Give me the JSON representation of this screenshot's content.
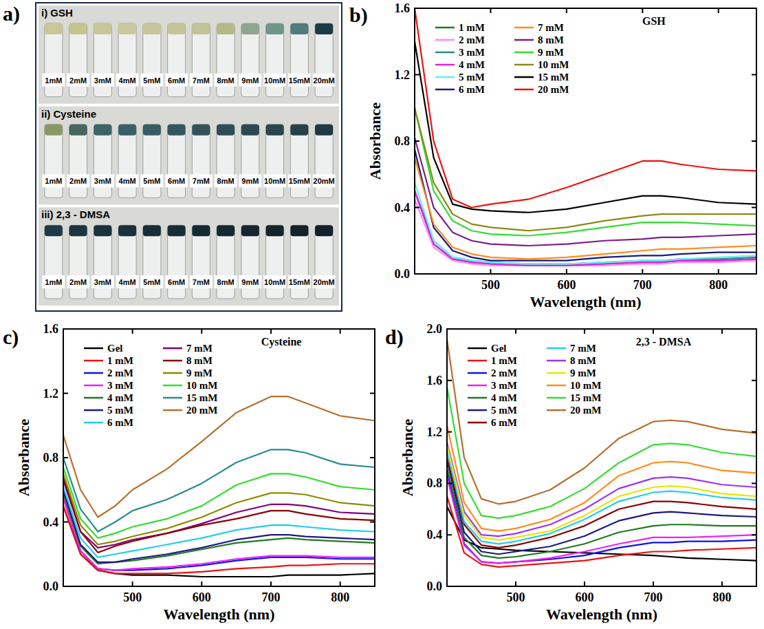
{
  "photo_panel": {
    "panel_label": "a)",
    "rows": [
      {
        "title": "i) GSH",
        "labels": [
          "1mM",
          "2mM",
          "3mM",
          "4mM",
          "5mM",
          "6mM",
          "7mM",
          "8mM",
          "9mM",
          "10mM",
          "15mM",
          "20mM"
        ],
        "colors": [
          "#c9c79a",
          "#c5c48f",
          "#c8c79a",
          "#c9c89c",
          "#c6c59a",
          "#c4c498",
          "#c2c396",
          "#b5b98a",
          "#8fa58e",
          "#6f9588",
          "#4f7c7e",
          "#1d3a48"
        ]
      },
      {
        "title": "ii) Cysteine",
        "labels": [
          "1mM",
          "2mM",
          "3mM",
          "4mM",
          "5mM",
          "6mM",
          "7mM",
          "8mM",
          "9mM",
          "10mM",
          "15mM",
          "20mM"
        ],
        "colors": [
          "#8a9866",
          "#466660",
          "#3e6468",
          "#3b5f66",
          "#3a5c64",
          "#355660",
          "#33525c",
          "#304e58",
          "#2c4852",
          "#2a454f",
          "#27404a",
          "#213843"
        ]
      },
      {
        "title": "iii) 2,3 - DMSA",
        "labels": [
          "1mM",
          "2mM",
          "3mM",
          "4mM",
          "5mM",
          "6mM",
          "7mM",
          "8mM",
          "9mM",
          "10mM",
          "15mM",
          "20mM"
        ],
        "colors": [
          "#1f3a44",
          "#1c343e",
          "#1b323c",
          "#1a303a",
          "#192e38",
          "#182c35",
          "#172a33",
          "#162831",
          "#15262f",
          "#14242d",
          "#13222b",
          "#122029"
        ]
      }
    ]
  },
  "chart_data": [
    {
      "type": "line",
      "panel_label": "b)",
      "title": "GSH",
      "x_label": "Wavelength (nm)",
      "y_label": "Absorbance",
      "x": [
        400,
        425,
        450,
        475,
        500,
        550,
        600,
        650,
        700,
        725,
        750,
        800,
        850
      ],
      "xlim": [
        400,
        850
      ],
      "xticks": [
        500,
        600,
        700,
        800
      ],
      "ylim": [
        0,
        1.6
      ],
      "yticks": [
        {
          "value": 0,
          "label": "0.0"
        },
        0.4,
        0.8,
        1.2,
        1.6
      ],
      "legend": "upper left",
      "series": [
        {
          "name": "1 mM",
          "color": "#1f7a1f",
          "values": [
            0.5,
            0.18,
            0.09,
            0.07,
            0.06,
            0.05,
            0.05,
            0.06,
            0.07,
            0.07,
            0.08,
            0.08,
            0.09
          ]
        },
        {
          "name": "2 mM",
          "color": "#ff88ff",
          "values": [
            0.45,
            0.16,
            0.08,
            0.06,
            0.05,
            0.05,
            0.05,
            0.05,
            0.06,
            0.06,
            0.07,
            0.07,
            0.08
          ]
        },
        {
          "name": "3 mM",
          "color": "#2a8c8c",
          "values": [
            0.5,
            0.2,
            0.1,
            0.08,
            0.07,
            0.06,
            0.06,
            0.07,
            0.08,
            0.08,
            0.09,
            0.09,
            0.1
          ]
        },
        {
          "name": "4 mM",
          "color": "#e020e0",
          "values": [
            0.5,
            0.18,
            0.09,
            0.07,
            0.06,
            0.05,
            0.05,
            0.06,
            0.07,
            0.07,
            0.08,
            0.08,
            0.09
          ]
        },
        {
          "name": "5 mM",
          "color": "#66eeee",
          "values": [
            0.55,
            0.2,
            0.1,
            0.08,
            0.07,
            0.06,
            0.06,
            0.07,
            0.08,
            0.08,
            0.09,
            0.1,
            0.11
          ]
        },
        {
          "name": "6 mM",
          "color": "#1a1a80",
          "values": [
            0.75,
            0.28,
            0.14,
            0.1,
            0.08,
            0.08,
            0.08,
            0.1,
            0.11,
            0.11,
            0.12,
            0.13,
            0.13
          ]
        },
        {
          "name": "7 mM",
          "color": "#ff8c1a",
          "values": [
            0.7,
            0.3,
            0.16,
            0.12,
            0.1,
            0.09,
            0.1,
            0.12,
            0.14,
            0.15,
            0.15,
            0.16,
            0.17
          ]
        },
        {
          "name": "8 mM",
          "color": "#7a1f8a",
          "values": [
            0.82,
            0.4,
            0.25,
            0.2,
            0.18,
            0.17,
            0.18,
            0.2,
            0.21,
            0.22,
            0.22,
            0.23,
            0.24
          ]
        },
        {
          "name": "9 mM",
          "color": "#33dd33",
          "values": [
            1.0,
            0.5,
            0.32,
            0.26,
            0.24,
            0.23,
            0.25,
            0.28,
            0.31,
            0.31,
            0.31,
            0.3,
            0.29
          ]
        },
        {
          "name": "10 mM",
          "color": "#8a8a1a",
          "values": [
            1.0,
            0.55,
            0.36,
            0.3,
            0.28,
            0.26,
            0.28,
            0.32,
            0.35,
            0.36,
            0.36,
            0.36,
            0.36
          ]
        },
        {
          "name": "15 mM",
          "color": "#000000",
          "values": [
            1.4,
            0.7,
            0.42,
            0.39,
            0.38,
            0.37,
            0.39,
            0.43,
            0.47,
            0.47,
            0.46,
            0.43,
            0.42
          ]
        },
        {
          "name": "20 mM",
          "color": "#ee1111",
          "values": [
            1.6,
            0.8,
            0.45,
            0.4,
            0.42,
            0.45,
            0.52,
            0.6,
            0.68,
            0.68,
            0.66,
            0.63,
            0.62
          ]
        }
      ]
    },
    {
      "type": "line",
      "panel_label": "c)",
      "title": "Cysteine",
      "x_label": "Wavelength (nm)",
      "y_label": "Absorbance",
      "x": [
        400,
        425,
        450,
        475,
        500,
        550,
        600,
        650,
        700,
        725,
        750,
        800,
        850
      ],
      "xlim": [
        400,
        850
      ],
      "xticks": [
        500,
        600,
        700,
        800
      ],
      "ylim": [
        0,
        1.6
      ],
      "yticks": [
        {
          "value": 0,
          "label": "0.0"
        },
        0.4,
        0.8,
        1.2,
        1.6
      ],
      "legend": "upper left",
      "series": [
        {
          "name": "Gel",
          "color": "#000000",
          "values": [
            0.5,
            0.2,
            0.1,
            0.08,
            0.07,
            0.07,
            0.06,
            0.06,
            0.06,
            0.07,
            0.07,
            0.07,
            0.08
          ]
        },
        {
          "name": "1 mM",
          "color": "#ee1111",
          "values": [
            0.5,
            0.2,
            0.1,
            0.08,
            0.08,
            0.08,
            0.09,
            0.11,
            0.12,
            0.13,
            0.13,
            0.14,
            0.14
          ]
        },
        {
          "name": "2 mM",
          "color": "#1111ee",
          "values": [
            0.55,
            0.22,
            0.11,
            0.1,
            0.1,
            0.11,
            0.13,
            0.16,
            0.18,
            0.18,
            0.18,
            0.17,
            0.17
          ]
        },
        {
          "name": "3 mM",
          "color": "#ee22ee",
          "values": [
            0.55,
            0.22,
            0.11,
            0.1,
            0.11,
            0.12,
            0.14,
            0.17,
            0.19,
            0.19,
            0.19,
            0.18,
            0.18
          ]
        },
        {
          "name": "4 mM",
          "color": "#1f7a1f",
          "values": [
            0.58,
            0.25,
            0.14,
            0.15,
            0.16,
            0.19,
            0.23,
            0.27,
            0.29,
            0.3,
            0.29,
            0.28,
            0.27
          ]
        },
        {
          "name": "5 mM",
          "color": "#1a1a80",
          "values": [
            0.6,
            0.26,
            0.15,
            0.15,
            0.17,
            0.2,
            0.24,
            0.29,
            0.32,
            0.32,
            0.31,
            0.3,
            0.29
          ]
        },
        {
          "name": "6 mM",
          "color": "#22ccee",
          "values": [
            0.62,
            0.3,
            0.18,
            0.2,
            0.22,
            0.26,
            0.3,
            0.35,
            0.38,
            0.38,
            0.37,
            0.35,
            0.34
          ]
        },
        {
          "name": "7 mM",
          "color": "#800080",
          "values": [
            0.66,
            0.34,
            0.24,
            0.26,
            0.29,
            0.33,
            0.39,
            0.46,
            0.51,
            0.51,
            0.5,
            0.46,
            0.45
          ]
        },
        {
          "name": "8 mM",
          "color": "#8b0000",
          "values": [
            0.68,
            0.34,
            0.21,
            0.25,
            0.28,
            0.33,
            0.38,
            0.42,
            0.47,
            0.47,
            0.45,
            0.42,
            0.41
          ]
        },
        {
          "name": "9 mM",
          "color": "#8b8b00",
          "values": [
            0.7,
            0.38,
            0.26,
            0.28,
            0.31,
            0.36,
            0.43,
            0.52,
            0.58,
            0.58,
            0.57,
            0.52,
            0.5
          ]
        },
        {
          "name": "10 mM",
          "color": "#33dd33",
          "values": [
            0.74,
            0.42,
            0.3,
            0.33,
            0.37,
            0.42,
            0.5,
            0.63,
            0.7,
            0.7,
            0.68,
            0.62,
            0.6
          ]
        },
        {
          "name": "15 mM",
          "color": "#2a8c8c",
          "values": [
            0.8,
            0.48,
            0.34,
            0.4,
            0.47,
            0.54,
            0.64,
            0.77,
            0.85,
            0.85,
            0.83,
            0.76,
            0.74
          ]
        },
        {
          "name": "20 mM",
          "color": "#b5702d",
          "values": [
            0.94,
            0.6,
            0.43,
            0.5,
            0.6,
            0.73,
            0.9,
            1.08,
            1.18,
            1.18,
            1.14,
            1.06,
            1.03
          ]
        }
      ]
    },
    {
      "type": "line",
      "panel_label": "d)",
      "title": "2,3 - DMSA",
      "x_label": "Wavelength (nm)",
      "y_label": "Absorbance",
      "x": [
        400,
        425,
        450,
        475,
        500,
        550,
        600,
        650,
        700,
        725,
        750,
        800,
        850
      ],
      "xlim": [
        400,
        850
      ],
      "xticks": [
        500,
        600,
        700,
        800
      ],
      "ylim": [
        0,
        2.0
      ],
      "yticks": [
        {
          "value": 0,
          "label": "0.0"
        },
        0.4,
        0.8,
        1.2,
        1.6,
        {
          "value": 2,
          "label": "2.0"
        }
      ],
      "legend": "upper left",
      "series": [
        {
          "name": "Gel",
          "color": "#000000",
          "values": [
            0.62,
            0.36,
            0.3,
            0.29,
            0.28,
            0.27,
            0.26,
            0.25,
            0.24,
            0.23,
            0.22,
            0.21,
            0.2
          ]
        },
        {
          "name": "1 mM",
          "color": "#ee1111",
          "values": [
            0.7,
            0.26,
            0.17,
            0.15,
            0.16,
            0.18,
            0.2,
            0.24,
            0.27,
            0.27,
            0.28,
            0.29,
            0.3
          ]
        },
        {
          "name": "2 mM",
          "color": "#1111ee",
          "values": [
            0.88,
            0.33,
            0.19,
            0.18,
            0.19,
            0.21,
            0.24,
            0.3,
            0.34,
            0.34,
            0.35,
            0.35,
            0.36
          ]
        },
        {
          "name": "3 mM",
          "color": "#ee22ee",
          "values": [
            0.85,
            0.32,
            0.19,
            0.18,
            0.19,
            0.22,
            0.27,
            0.33,
            0.38,
            0.38,
            0.38,
            0.39,
            0.4
          ]
        },
        {
          "name": "4 mM",
          "color": "#1f7a1f",
          "values": [
            0.92,
            0.38,
            0.24,
            0.22,
            0.23,
            0.27,
            0.33,
            0.42,
            0.47,
            0.48,
            0.48,
            0.47,
            0.47
          ]
        },
        {
          "name": "5 mM",
          "color": "#1a1a80",
          "values": [
            0.98,
            0.42,
            0.27,
            0.25,
            0.27,
            0.31,
            0.39,
            0.51,
            0.57,
            0.58,
            0.57,
            0.55,
            0.54
          ]
        },
        {
          "name": "6 mM",
          "color": "#8b0000",
          "values": [
            1.0,
            0.48,
            0.32,
            0.3,
            0.32,
            0.38,
            0.47,
            0.6,
            0.66,
            0.66,
            0.65,
            0.62,
            0.6
          ]
        },
        {
          "name": "7 mM",
          "color": "#22ccee",
          "values": [
            1.05,
            0.5,
            0.35,
            0.33,
            0.35,
            0.41,
            0.52,
            0.66,
            0.73,
            0.74,
            0.73,
            0.69,
            0.67
          ]
        },
        {
          "name": "8 mM",
          "color": "#9933ff",
          "values": [
            1.12,
            0.58,
            0.4,
            0.39,
            0.41,
            0.48,
            0.6,
            0.76,
            0.84,
            0.85,
            0.84,
            0.79,
            0.77
          ]
        },
        {
          "name": "9 mM",
          "color": "#e6e600",
          "values": [
            1.1,
            0.55,
            0.38,
            0.36,
            0.38,
            0.43,
            0.55,
            0.7,
            0.77,
            0.78,
            0.77,
            0.72,
            0.7
          ]
        },
        {
          "name": "10 mM",
          "color": "#ff8c1a",
          "values": [
            1.25,
            0.65,
            0.45,
            0.43,
            0.45,
            0.52,
            0.65,
            0.86,
            0.96,
            0.97,
            0.96,
            0.9,
            0.88
          ]
        },
        {
          "name": "15 mM",
          "color": "#33dd33",
          "values": [
            1.55,
            0.8,
            0.55,
            0.53,
            0.55,
            0.62,
            0.76,
            0.96,
            1.1,
            1.11,
            1.1,
            1.04,
            1.01
          ]
        },
        {
          "name": "20 mM",
          "color": "#b5702d",
          "values": [
            1.92,
            1.0,
            0.68,
            0.64,
            0.66,
            0.75,
            0.92,
            1.15,
            1.28,
            1.29,
            1.28,
            1.22,
            1.19
          ]
        }
      ]
    }
  ]
}
